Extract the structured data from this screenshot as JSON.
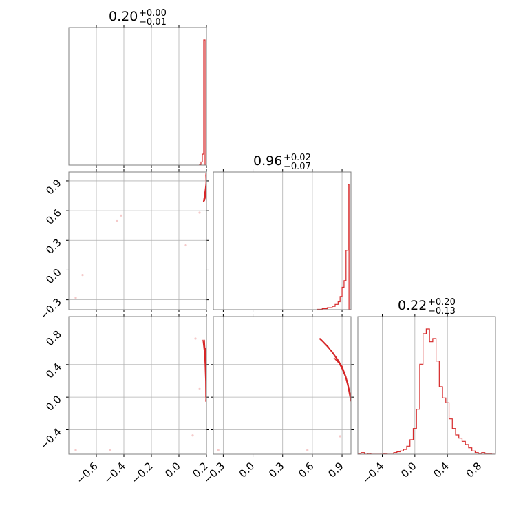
{
  "chart_data": {
    "type": "corner",
    "colors": {
      "series": "#d62728",
      "grid": "#b0b0b0",
      "frame": "#7f7f7f"
    },
    "parameters": [
      {
        "range": [
          -0.8,
          0.2
        ],
        "ticks": [
          {
            "v": -0.6,
            "label": "−0.6"
          },
          {
            "v": -0.4,
            "label": "−0.4"
          },
          {
            "v": -0.2,
            "label": "−0.2"
          },
          {
            "v": 0.0,
            "label": "0.0"
          },
          {
            "v": 0.2,
            "label": "0.2"
          }
        ],
        "title": {
          "median": "0.20",
          "plus": "+0.00",
          "minus": "−0.01"
        }
      },
      {
        "range": [
          -0.4,
          0.99
        ],
        "ticks": [
          {
            "v": -0.3,
            "label": "−0.3"
          },
          {
            "v": 0.0,
            "label": "0.0"
          },
          {
            "v": 0.3,
            "label": "0.3"
          },
          {
            "v": 0.6,
            "label": "0.6"
          },
          {
            "v": 0.9,
            "label": "0.9"
          }
        ],
        "title": {
          "median": "0.96",
          "plus": "+0.02",
          "minus": "−0.07"
        }
      },
      {
        "range": [
          -0.7,
          0.99
        ],
        "ticks": [
          {
            "v": -0.4,
            "label": "−0.4"
          },
          {
            "v": 0.0,
            "label": "0.0"
          },
          {
            "v": 0.4,
            "label": "0.4"
          },
          {
            "v": 0.8,
            "label": "0.8"
          }
        ],
        "title": {
          "median": "0.22",
          "plus": "+0.20",
          "minus": "−0.13"
        }
      }
    ],
    "hist1d": [
      {
        "param": 0,
        "edges": [
          0.15,
          0.16,
          0.17,
          0.18,
          0.19,
          0.2
        ],
        "counts": [
          0.5,
          2,
          7,
          80,
          0
        ]
      },
      {
        "param": 1,
        "edges": [
          0.65,
          0.7,
          0.75,
          0.8,
          0.83,
          0.86,
          0.88,
          0.9,
          0.92,
          0.94,
          0.96,
          0.97,
          0.99
        ],
        "counts": [
          0.3,
          0.8,
          1.5,
          2.5,
          4,
          6,
          10,
          17,
          22,
          45,
          95,
          0
        ]
      },
      {
        "param": 2,
        "edges": [
          -0.7,
          -0.66,
          -0.62,
          -0.58,
          -0.54,
          -0.5,
          -0.46,
          -0.42,
          -0.38,
          -0.34,
          -0.3,
          -0.26,
          -0.22,
          -0.18,
          -0.14,
          -0.1,
          -0.06,
          -0.02,
          0.02,
          0.06,
          0.1,
          0.14,
          0.18,
          0.22,
          0.26,
          0.3,
          0.34,
          0.38,
          0.42,
          0.46,
          0.5,
          0.54,
          0.58,
          0.62,
          0.66,
          0.7,
          0.74,
          0.78,
          0.82,
          0.86,
          0.9,
          0.94,
          0.98
        ],
        "counts": [
          0.5,
          1,
          0,
          0.5,
          0,
          0,
          0,
          0,
          0.5,
          0,
          0,
          1,
          1.5,
          2,
          3,
          5,
          9,
          16,
          28,
          56,
          75,
          78,
          70,
          72,
          58,
          42,
          35,
          32,
          22,
          16,
          12,
          10,
          8,
          6,
          4,
          2,
          1,
          0.5,
          1,
          0.5,
          0.5,
          0
        ]
      }
    ],
    "hist2d": [
      {
        "x": 0,
        "y": 1,
        "core": [
          [
            0.186,
            0.7
          ],
          [
            0.19,
            0.76
          ],
          [
            0.195,
            0.83
          ],
          [
            0.198,
            0.9
          ],
          [
            0.196,
            0.97
          ]
        ],
        "contours": [
          [
            [
              0.178,
              0.69
            ],
            [
              0.185,
              0.75
            ],
            [
              0.192,
              0.82
            ],
            [
              0.198,
              0.89
            ],
            [
              0.195,
              0.96
            ]
          ],
          [
            [
              0.19,
              0.72
            ],
            [
              0.195,
              0.79
            ],
            [
              0.199,
              0.86
            ],
            [
              0.199,
              0.92
            ],
            [
              0.197,
              0.98
            ]
          ]
        ],
        "points": [
          [
            -0.75,
            -0.28
          ],
          [
            -0.7,
            -0.05
          ],
          [
            -0.45,
            0.5
          ],
          [
            -0.42,
            0.55
          ],
          [
            0.05,
            0.25
          ],
          [
            0.15,
            0.58
          ]
        ]
      },
      {
        "x": 0,
        "y": 2,
        "core": [
          [
            0.185,
            0.7
          ],
          [
            0.19,
            0.55
          ],
          [
            0.195,
            0.4
          ],
          [
            0.198,
            0.2
          ],
          [
            0.197,
            0.0
          ],
          [
            0.195,
            -0.05
          ]
        ],
        "contours": [
          [
            [
              0.175,
              0.7
            ],
            [
              0.185,
              0.55
            ],
            [
              0.19,
              0.4
            ],
            [
              0.194,
              0.2
            ],
            [
              0.195,
              0.0
            ]
          ],
          [
            [
              0.192,
              0.6
            ],
            [
              0.197,
              0.45
            ],
            [
              0.199,
              0.3
            ],
            [
              0.2,
              0.1
            ],
            [
              0.199,
              -0.05
            ]
          ]
        ],
        "points": [
          [
            -0.75,
            -0.65
          ],
          [
            -0.5,
            -0.65
          ],
          [
            0.1,
            -0.47
          ],
          [
            0.15,
            0.1
          ],
          [
            0.12,
            0.72
          ]
        ]
      },
      {
        "x": 1,
        "y": 2,
        "core": [
          [
            0.67,
            0.72
          ],
          [
            0.74,
            0.64
          ],
          [
            0.82,
            0.52
          ],
          [
            0.88,
            0.4
          ],
          [
            0.93,
            0.27
          ],
          [
            0.96,
            0.13
          ],
          [
            0.98,
            0.0
          ],
          [
            0.99,
            -0.05
          ]
        ],
        "contours": [
          [
            [
              0.68,
              0.72
            ],
            [
              0.76,
              0.62
            ],
            [
              0.84,
              0.48
            ],
            [
              0.9,
              0.35
            ],
            [
              0.95,
              0.2
            ],
            [
              0.98,
              0.05
            ],
            [
              0.99,
              -0.05
            ]
          ],
          [
            [
              0.72,
              0.66
            ],
            [
              0.8,
              0.56
            ],
            [
              0.87,
              0.44
            ],
            [
              0.92,
              0.31
            ],
            [
              0.96,
              0.17
            ],
            [
              0.98,
              0.03
            ]
          ],
          [
            [
              0.82,
              0.48
            ],
            [
              0.9,
              0.38
            ],
            [
              0.94,
              0.25
            ],
            [
              0.97,
              0.1
            ],
            [
              0.99,
              0.0
            ]
          ]
        ],
        "points": [
          [
            -0.35,
            -0.65
          ],
          [
            0.55,
            -0.65
          ],
          [
            0.88,
            -0.48
          ],
          [
            0.98,
            0.05
          ]
        ]
      }
    ]
  }
}
